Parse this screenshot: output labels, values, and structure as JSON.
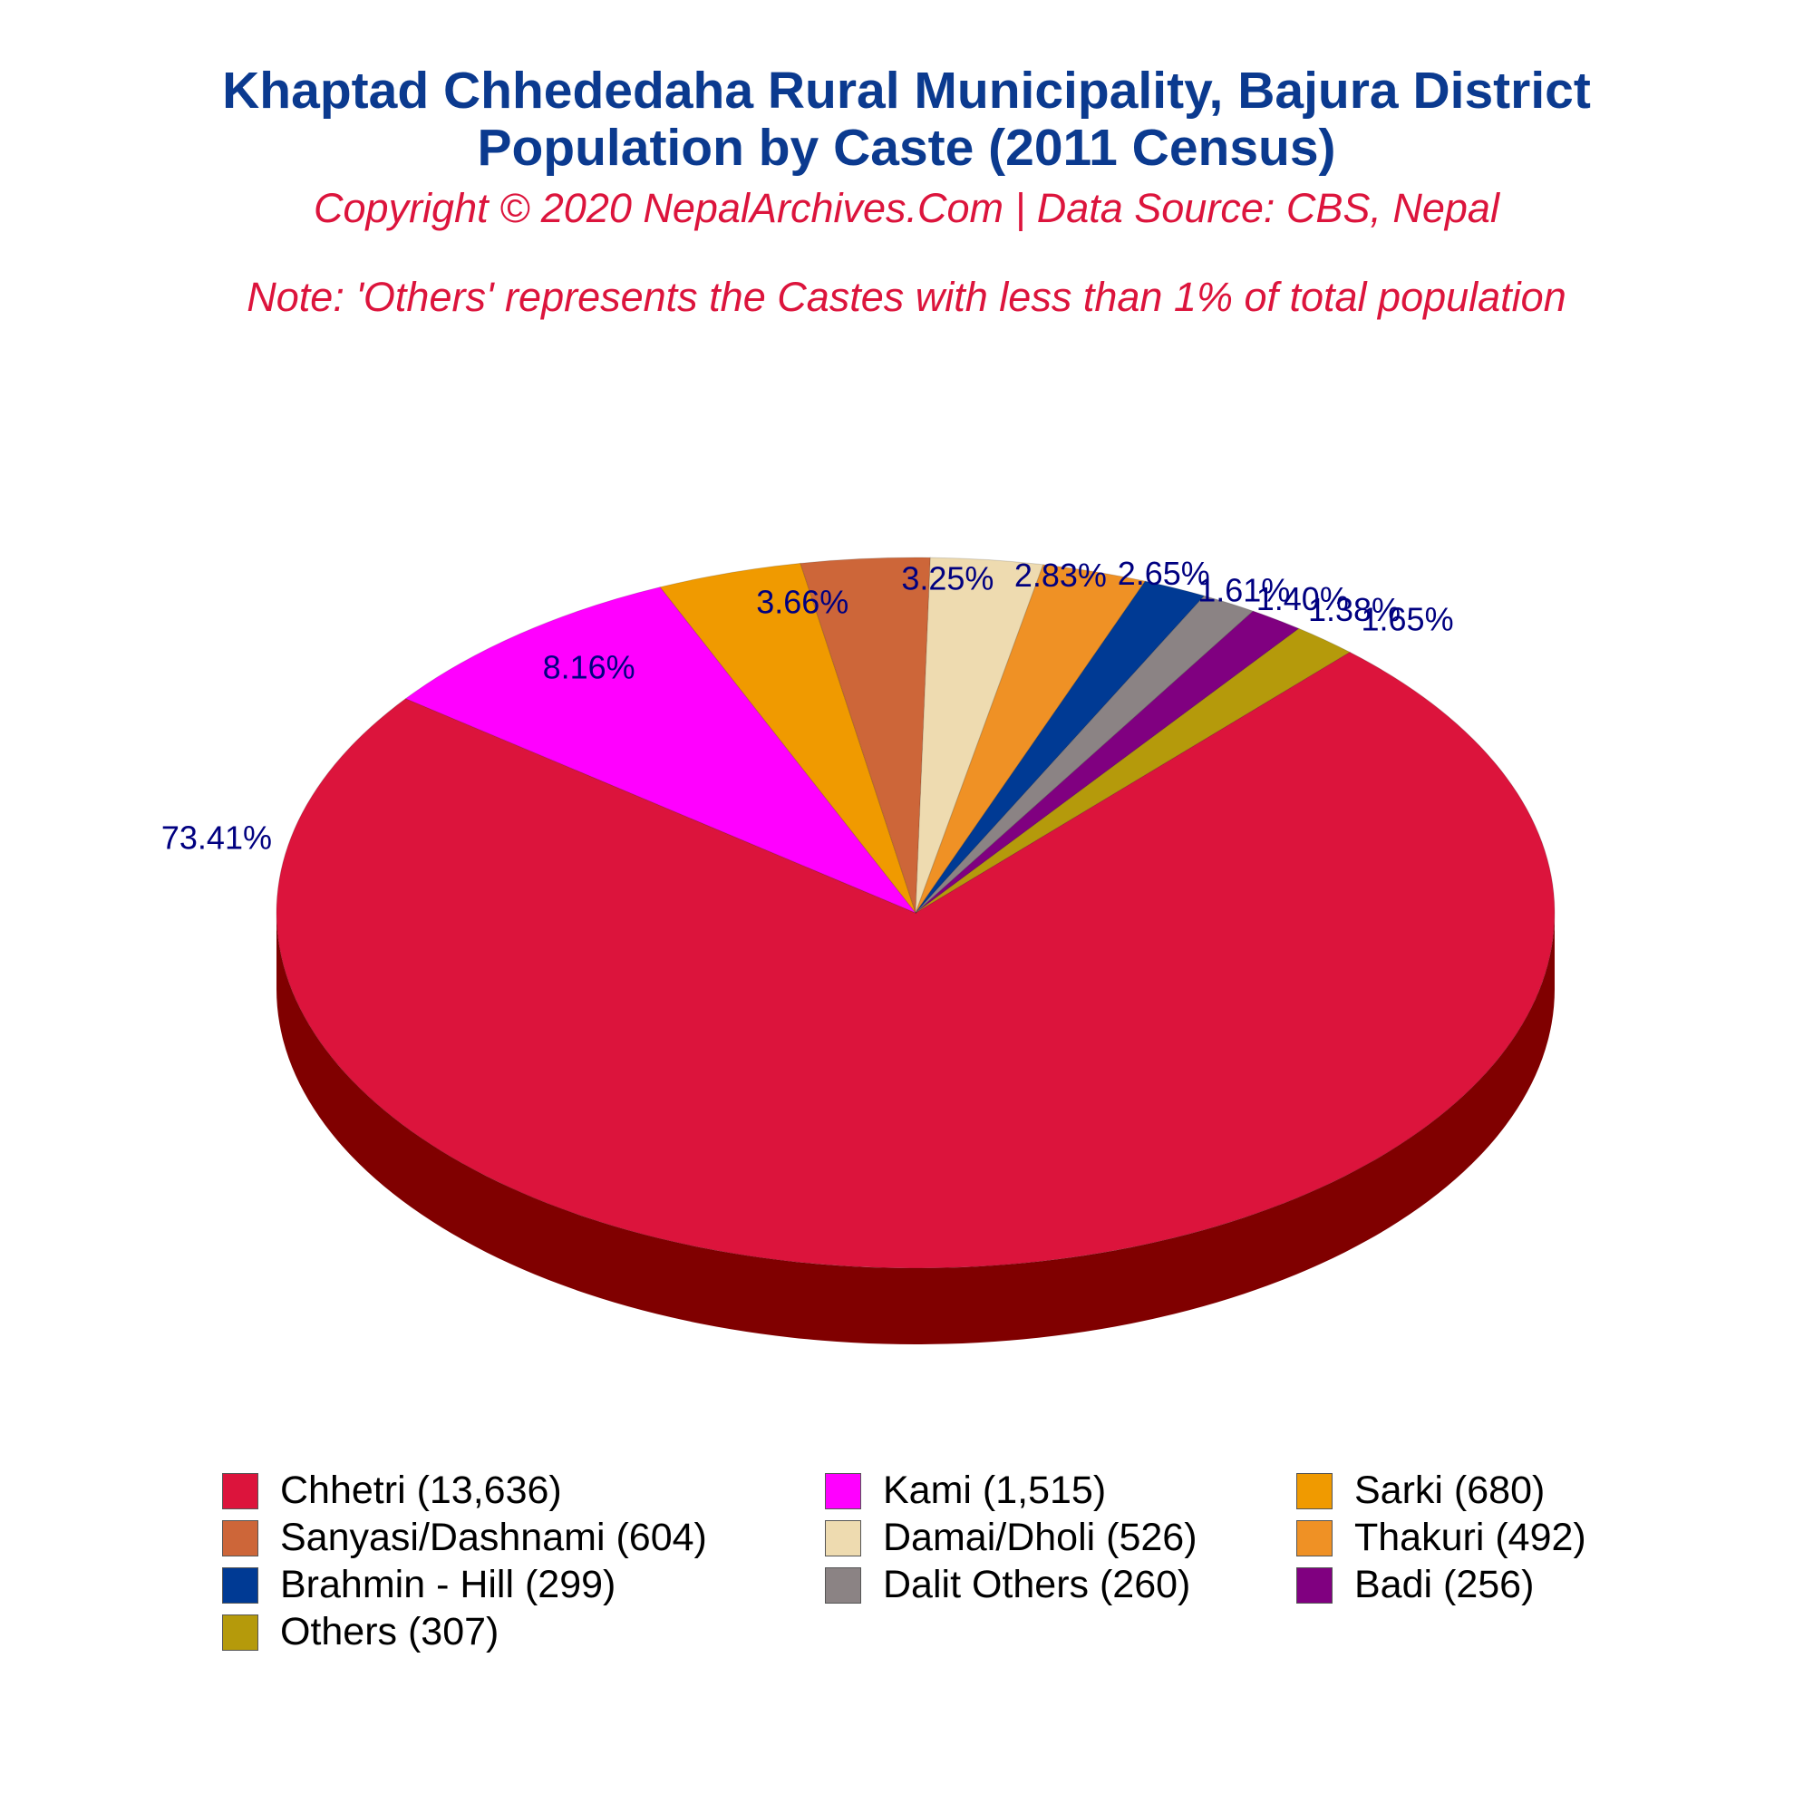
{
  "chart_data": {
    "type": "pie",
    "title": "Khaptad Chhededaha Rural Municipality, Bajura District",
    "subtitle": "Population by Caste (2011 Census)",
    "copyright": "Copyright © 2020 NepalArchives.Com | Data Source: CBS, Nepal",
    "note": "Note: 'Others' represents the Castes with less than 1% of total population",
    "legend_placement": "bottom",
    "slices": [
      {
        "label": "Chhetri",
        "value": 13636,
        "value_text": "13,636",
        "percent": 73.41,
        "percent_text": "73.41%",
        "color": "#dc143c",
        "side_color": "#800000"
      },
      {
        "label": "Kami",
        "value": 1515,
        "value_text": "1,515",
        "percent": 8.16,
        "percent_text": "8.16%",
        "color": "#ff00ff",
        "side_color": "#a000a8"
      },
      {
        "label": "Sarki",
        "value": 680,
        "value_text": "680",
        "percent": 3.66,
        "percent_text": "3.66%",
        "color": "#f09a00",
        "side_color": "#8c3c00"
      },
      {
        "label": "Sanyasi/Dashnami",
        "value": 604,
        "value_text": "604",
        "percent": 3.25,
        "percent_text": "3.25%",
        "color": "#cd6639",
        "side_color": "#7a1a00"
      },
      {
        "label": "Damai/Dholi",
        "value": 526,
        "value_text": "526",
        "percent": 2.83,
        "percent_text": "2.83%",
        "color": "#eedbb0",
        "side_color": "#8a7a50"
      },
      {
        "label": "Thakuri",
        "value": 492,
        "value_text": "492",
        "percent": 2.65,
        "percent_text": "2.65%",
        "color": "#ef9125",
        "side_color": "#8a4a00"
      },
      {
        "label": "Brahmin - Hill",
        "value": 299,
        "value_text": "299",
        "percent": 1.61,
        "percent_text": "1.61%",
        "color": "#003a94",
        "side_color": "#001a50"
      },
      {
        "label": "Dalit Others",
        "value": 260,
        "value_text": "260",
        "percent": 1.4,
        "percent_text": "1.40%",
        "color": "#8b8384",
        "side_color": "#4a4444"
      },
      {
        "label": "Badi",
        "value": 256,
        "value_text": "256",
        "percent": 1.38,
        "percent_text": "1.38%",
        "color": "#800080",
        "side_color": "#400040"
      },
      {
        "label": "Others",
        "value": 307,
        "value_text": "307",
        "percent": 1.65,
        "percent_text": "1.65%",
        "color": "#b59a0b",
        "side_color": "#5a4a00"
      }
    ]
  }
}
